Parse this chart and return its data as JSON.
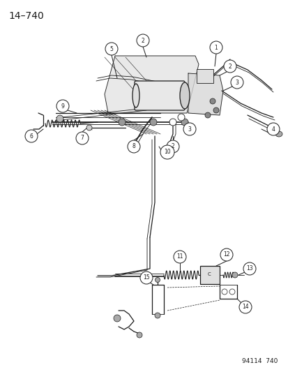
{
  "title": "14–740",
  "footer": "94114  740",
  "bg_color": "#ffffff",
  "line_color": "#1a1a1a",
  "title_fontsize": 10,
  "footer_fontsize": 6.5,
  "fig_width": 4.14,
  "fig_height": 5.33,
  "dpi": 100
}
